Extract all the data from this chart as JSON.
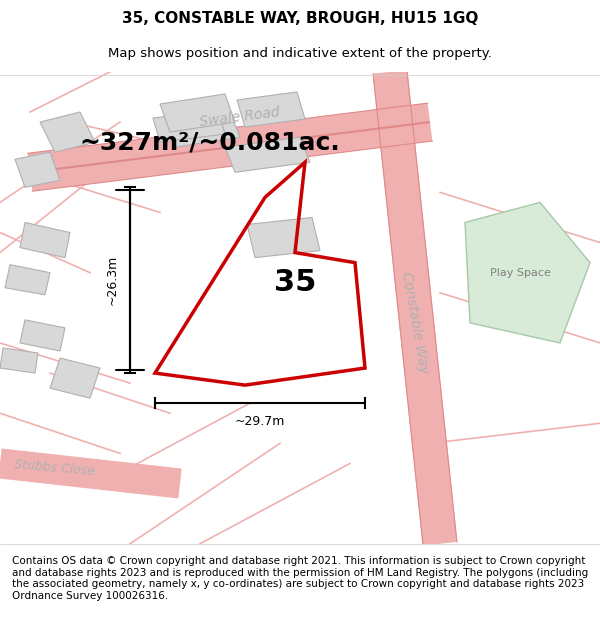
{
  "title": "35, CONSTABLE WAY, BROUGH, HU15 1GQ",
  "subtitle": "Map shows position and indicative extent of the property.",
  "area_text": "~327m²/~0.081ac.",
  "number_label": "35",
  "dim_horizontal": "~29.7m",
  "dim_vertical": "~26.3m",
  "road_label_swale": "Swale Road",
  "road_label_constable": "Constable Way",
  "road_label_stubbs": "Stubbs Close",
  "play_space_label": "Play Space",
  "footer_text": "Contains OS data © Crown copyright and database right 2021. This information is subject to Crown copyright and database rights 2023 and is reproduced with the permission of HM Land Registry. The polygons (including the associated geometry, namely x, y co-ordinates) are subject to Crown copyright and database rights 2023 Ordnance Survey 100026316.",
  "bg_color": "#f5f5f5",
  "map_bg": "#ffffff",
  "road_pink": "#f0b0b0",
  "road_dark": "#d08080",
  "property_red": "#cc0000",
  "building_gray": "#d8d8d8",
  "green_area": "#d8ead8",
  "title_fontsize": 11,
  "subtitle_fontsize": 9.5,
  "area_fontsize": 18,
  "footer_fontsize": 7.5
}
